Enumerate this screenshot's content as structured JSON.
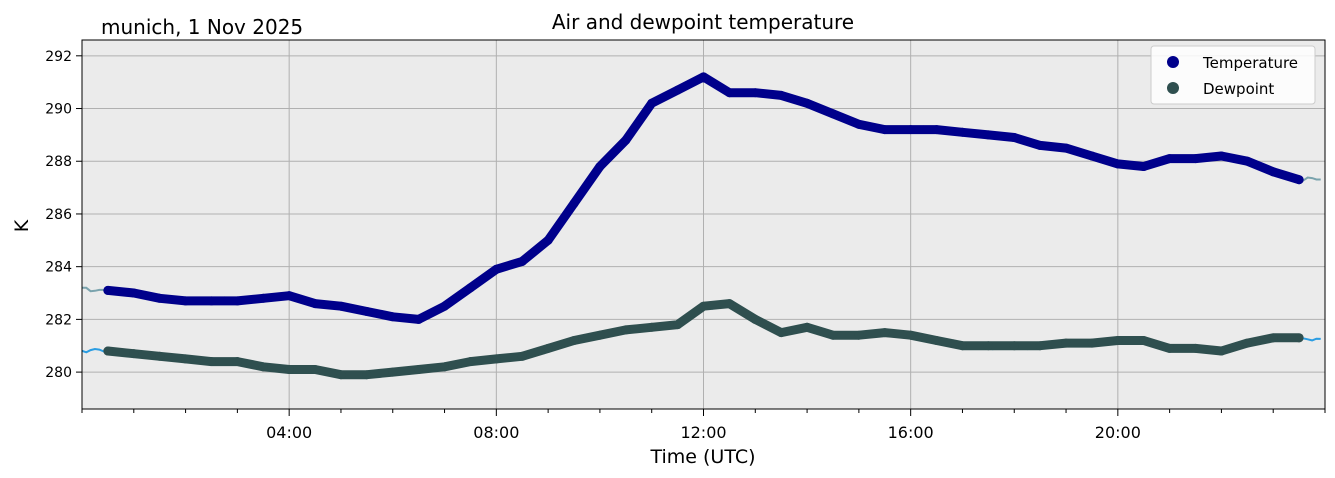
{
  "chart_data": {
    "type": "line",
    "title": "Air and dewpoint temperature",
    "subtitle": "munich, 1 Nov 2025",
    "xlabel": "Time (UTC)",
    "ylabel": "K",
    "xlim": [
      0,
      24
    ],
    "ylim": [
      278.6,
      292.6
    ],
    "x_ticks": [
      {
        "value": 4,
        "label": "04:00"
      },
      {
        "value": 8,
        "label": "08:00"
      },
      {
        "value": 12,
        "label": "12:00"
      },
      {
        "value": 16,
        "label": "16:00"
      },
      {
        "value": 20,
        "label": "20:00"
      }
    ],
    "y_ticks": [
      280,
      282,
      284,
      286,
      288,
      290,
      292
    ],
    "grid": true,
    "legend_position": "top-right",
    "series": [
      {
        "name": "Temperature",
        "color": "#00008b",
        "raw_color": "#7aa3ad",
        "x": [
          0.5,
          1.0,
          1.5,
          2.0,
          2.5,
          3.0,
          3.5,
          4.0,
          4.5,
          5.0,
          5.5,
          6.0,
          6.5,
          7.0,
          7.5,
          8.0,
          8.5,
          9.0,
          9.5,
          10.0,
          10.5,
          11.0,
          11.5,
          12.0,
          12.5,
          13.0,
          13.5,
          14.0,
          14.5,
          15.0,
          15.5,
          16.0,
          16.5,
          17.0,
          17.5,
          18.0,
          18.5,
          19.0,
          19.5,
          20.0,
          20.5,
          21.0,
          21.5,
          22.0,
          22.5,
          23.0,
          23.5
        ],
        "y": [
          283.1,
          283.0,
          282.8,
          282.7,
          282.7,
          282.7,
          282.8,
          282.9,
          282.6,
          282.5,
          282.3,
          282.1,
          282.0,
          282.5,
          283.2,
          283.9,
          284.2,
          285.0,
          286.4,
          287.8,
          288.8,
          290.2,
          290.7,
          291.2,
          290.6,
          290.6,
          290.5,
          290.2,
          289.8,
          289.4,
          289.2,
          289.2,
          289.2,
          289.1,
          289.0,
          288.9,
          288.6,
          288.5,
          288.2,
          287.9,
          287.8,
          288.1,
          288.1,
          288.2,
          288.0,
          287.6,
          287.3
        ]
      },
      {
        "name": "Dewpoint",
        "color": "#2f4f4f",
        "raw_color": "#2b9de2",
        "x": [
          0.5,
          1.0,
          1.5,
          2.0,
          2.5,
          3.0,
          3.5,
          4.0,
          4.5,
          5.0,
          5.5,
          6.0,
          6.5,
          7.0,
          7.5,
          8.0,
          8.5,
          9.0,
          9.5,
          10.0,
          10.5,
          11.0,
          11.5,
          12.0,
          12.5,
          13.0,
          13.5,
          14.0,
          14.5,
          15.0,
          15.5,
          16.0,
          16.5,
          17.0,
          17.5,
          18.0,
          18.5,
          19.0,
          19.5,
          20.0,
          20.5,
          21.0,
          21.5,
          22.0,
          22.5,
          23.0,
          23.5
        ],
        "y": [
          280.8,
          280.7,
          280.6,
          280.5,
          280.4,
          280.4,
          280.2,
          280.1,
          280.1,
          279.9,
          279.9,
          280.0,
          280.1,
          280.2,
          280.4,
          280.5,
          280.6,
          280.9,
          281.2,
          281.4,
          281.6,
          281.7,
          281.8,
          282.5,
          282.6,
          282.0,
          281.5,
          281.7,
          281.4,
          281.4,
          281.5,
          281.4,
          281.2,
          281.0,
          281.0,
          281.0,
          281.0,
          281.1,
          281.1,
          281.2,
          281.2,
          280.9,
          280.9,
          280.8,
          281.1,
          281.3,
          281.3
        ]
      }
    ]
  }
}
